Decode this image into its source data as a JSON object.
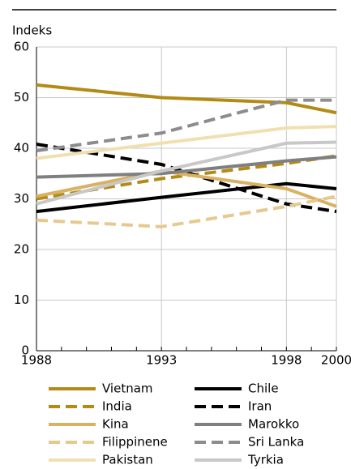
{
  "chart_data": {
    "type": "line",
    "y_label": "Indeks",
    "x": [
      1988,
      1993,
      1998,
      2000
    ],
    "xlim": [
      1988,
      2000
    ],
    "xticks": [
      1988,
      1993,
      1998,
      2000
    ],
    "ylim": [
      0,
      60
    ],
    "yticks": [
      0,
      10,
      20,
      30,
      40,
      50,
      60
    ],
    "grid": true,
    "series": [
      {
        "name": "Vietnam",
        "color": "#b38b14",
        "dashed": false,
        "values": [
          52.5,
          50,
          49,
          47
        ]
      },
      {
        "name": "Chile",
        "color": "#000000",
        "dashed": false,
        "values": [
          27.5,
          30.3,
          33,
          32
        ]
      },
      {
        "name": "India",
        "color": "#b38b14",
        "dashed": true,
        "values": [
          30,
          34,
          37,
          38.5
        ]
      },
      {
        "name": "Iran",
        "color": "#000000",
        "dashed": true,
        "values": [
          40.8,
          36.8,
          29,
          27.5
        ]
      },
      {
        "name": "Kina",
        "color": "#d8b262",
        "dashed": false,
        "values": [
          30.5,
          35.5,
          32,
          28.5
        ]
      },
      {
        "name": "Marokko",
        "color": "#7f7f7f",
        "dashed": false,
        "values": [
          34.3,
          35,
          37.5,
          38.3
        ]
      },
      {
        "name": "Filippinene",
        "color": "#e6c98e",
        "dashed": true,
        "values": [
          25.8,
          24.5,
          28.5,
          30.5
        ]
      },
      {
        "name": "Sri Lanka",
        "color": "#8c8c8c",
        "dashed": true,
        "values": [
          39.5,
          43,
          49.5,
          49.5
        ]
      },
      {
        "name": "Pakistan",
        "color": "#f1dfb0",
        "dashed": false,
        "values": [
          38,
          41,
          44,
          44.3
        ]
      },
      {
        "name": "Tyrkia",
        "color": "#c8c8c8",
        "dashed": false,
        "values": [
          29,
          35.5,
          41,
          41.2
        ]
      }
    ]
  }
}
